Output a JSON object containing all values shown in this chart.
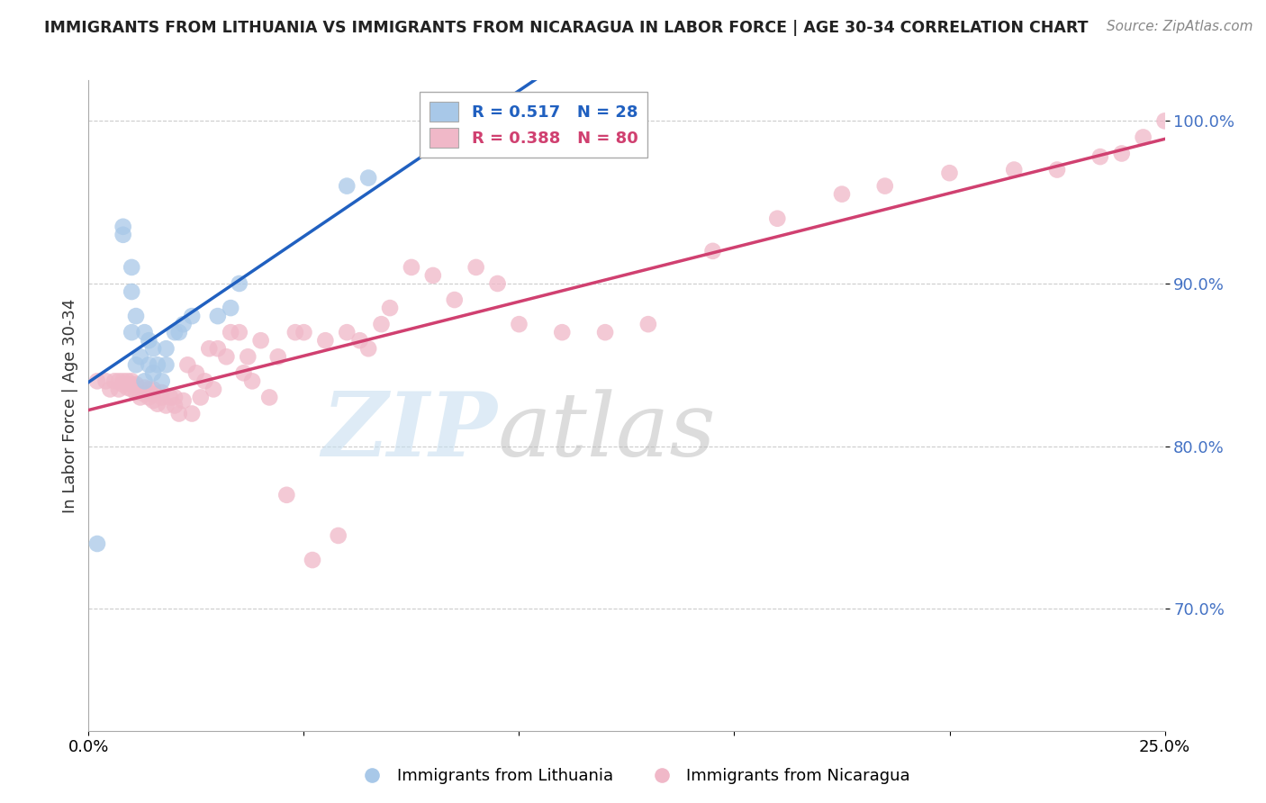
{
  "title": "IMMIGRANTS FROM LITHUANIA VS IMMIGRANTS FROM NICARAGUA IN LABOR FORCE | AGE 30-34 CORRELATION CHART",
  "source": "Source: ZipAtlas.com",
  "ylabel": "In Labor Force | Age 30-34",
  "x_min": 0.0,
  "x_max": 0.25,
  "y_min": 0.625,
  "y_max": 1.025,
  "y_ticks": [
    0.7,
    0.8,
    0.9,
    1.0
  ],
  "y_tick_labels": [
    "70.0%",
    "80.0%",
    "90.0%",
    "100.0%"
  ],
  "x_ticks": [
    0.0,
    0.05,
    0.1,
    0.15,
    0.2,
    0.25
  ],
  "x_tick_labels": [
    "0.0%",
    "",
    "",
    "",
    "",
    "25.0%"
  ],
  "lithuania_color": "#a8c8e8",
  "nicaragua_color": "#f0b8c8",
  "lithuania_R": 0.517,
  "lithuania_N": 28,
  "nicaragua_R": 0.388,
  "nicaragua_N": 80,
  "line_color_lithuania": "#2060c0",
  "line_color_nicaragua": "#d04070",
  "lithuania_x": [
    0.002,
    0.008,
    0.008,
    0.01,
    0.01,
    0.01,
    0.011,
    0.011,
    0.012,
    0.013,
    0.013,
    0.014,
    0.014,
    0.015,
    0.015,
    0.016,
    0.017,
    0.018,
    0.018,
    0.02,
    0.021,
    0.022,
    0.024,
    0.03,
    0.033,
    0.035,
    0.06,
    0.065
  ],
  "lithuania_y": [
    0.74,
    0.93,
    0.935,
    0.87,
    0.895,
    0.91,
    0.85,
    0.88,
    0.855,
    0.84,
    0.87,
    0.85,
    0.865,
    0.845,
    0.86,
    0.85,
    0.84,
    0.85,
    0.86,
    0.87,
    0.87,
    0.875,
    0.88,
    0.88,
    0.885,
    0.9,
    0.96,
    0.965
  ],
  "nicaragua_x": [
    0.002,
    0.004,
    0.005,
    0.006,
    0.007,
    0.007,
    0.008,
    0.008,
    0.009,
    0.009,
    0.01,
    0.01,
    0.01,
    0.011,
    0.011,
    0.012,
    0.013,
    0.013,
    0.014,
    0.014,
    0.015,
    0.015,
    0.015,
    0.016,
    0.017,
    0.017,
    0.018,
    0.019,
    0.02,
    0.02,
    0.021,
    0.022,
    0.023,
    0.024,
    0.025,
    0.026,
    0.027,
    0.028,
    0.029,
    0.03,
    0.032,
    0.033,
    0.035,
    0.036,
    0.037,
    0.038,
    0.04,
    0.042,
    0.044,
    0.046,
    0.048,
    0.05,
    0.052,
    0.055,
    0.058,
    0.06,
    0.063,
    0.065,
    0.068,
    0.07,
    0.075,
    0.08,
    0.085,
    0.09,
    0.095,
    0.1,
    0.11,
    0.12,
    0.13,
    0.145,
    0.16,
    0.175,
    0.185,
    0.2,
    0.215,
    0.225,
    0.235,
    0.24,
    0.245,
    0.25
  ],
  "nicaragua_y": [
    0.84,
    0.84,
    0.835,
    0.84,
    0.835,
    0.84,
    0.838,
    0.84,
    0.836,
    0.84,
    0.835,
    0.838,
    0.84,
    0.833,
    0.838,
    0.83,
    0.832,
    0.836,
    0.83,
    0.835,
    0.828,
    0.832,
    0.835,
    0.826,
    0.83,
    0.833,
    0.825,
    0.83,
    0.825,
    0.83,
    0.82,
    0.828,
    0.85,
    0.82,
    0.845,
    0.83,
    0.84,
    0.86,
    0.835,
    0.86,
    0.855,
    0.87,
    0.87,
    0.845,
    0.855,
    0.84,
    0.865,
    0.83,
    0.855,
    0.77,
    0.87,
    0.87,
    0.73,
    0.865,
    0.745,
    0.87,
    0.865,
    0.86,
    0.875,
    0.885,
    0.91,
    0.905,
    0.89,
    0.91,
    0.9,
    0.875,
    0.87,
    0.87,
    0.875,
    0.92,
    0.94,
    0.955,
    0.96,
    0.968,
    0.97,
    0.97,
    0.978,
    0.98,
    0.99,
    1.0
  ]
}
